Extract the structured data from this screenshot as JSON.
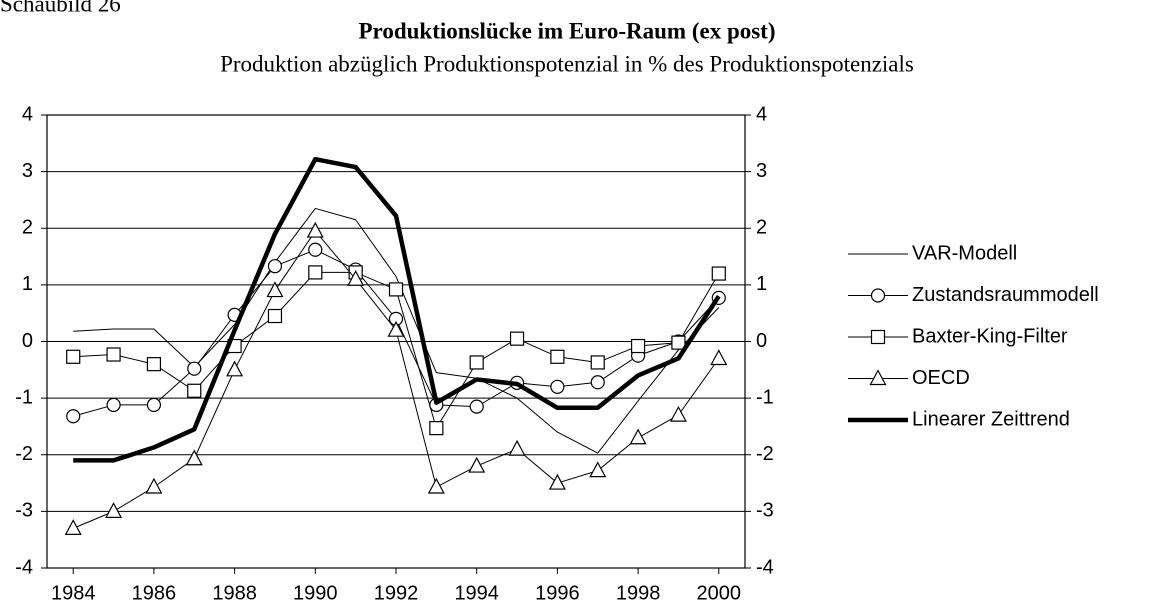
{
  "chart_data": {
    "type": "line",
    "figure_label": "Schaubild 26",
    "title": "Produktionslücke im Euro-Raum (ex post)",
    "subtitle": "Produktion abzüglich Produktionspotenzial in % des Produktionspotenzials",
    "x": [
      1984,
      1985,
      1986,
      1987,
      1988,
      1989,
      1990,
      1991,
      1992,
      1993,
      1994,
      1995,
      1996,
      1997,
      1998,
      1999,
      2000
    ],
    "xlim": [
      1983.35,
      2000.65
    ],
    "xticks": [
      1984,
      1986,
      1988,
      1990,
      1992,
      1994,
      1996,
      1998,
      2000
    ],
    "ylim": [
      -4,
      4
    ],
    "yticks": [
      -4,
      -3,
      -2,
      -1,
      0,
      1,
      2,
      3,
      4
    ],
    "y2lim": [
      -4,
      4
    ],
    "y2ticks": [
      -4,
      -3,
      -2,
      -1,
      0,
      1,
      2,
      3,
      4
    ],
    "grid": true,
    "legend": "right",
    "series": [
      {
        "name": "VAR-Modell",
        "color": "#000000",
        "width": 1,
        "marker": "none",
        "values": [
          0.18,
          0.22,
          0.22,
          -0.45,
          0.3,
          1.4,
          2.35,
          2.15,
          1.15,
          -0.55,
          -0.65,
          -1.0,
          -1.6,
          -1.97,
          -1.05,
          -0.15,
          0.6
        ]
      },
      {
        "name": "Zustandsraummodell",
        "color": "#000000",
        "width": 1,
        "marker": "circle",
        "values": [
          -1.32,
          -1.12,
          -1.12,
          -0.48,
          0.47,
          1.33,
          1.62,
          1.27,
          0.4,
          -1.12,
          -1.15,
          -0.73,
          -0.8,
          -0.72,
          -0.25,
          0.0,
          0.77
        ]
      },
      {
        "name": "Baxter-King-Filter",
        "color": "#000000",
        "width": 1,
        "marker": "square",
        "values": [
          -0.27,
          -0.23,
          -0.4,
          -0.87,
          -0.08,
          0.45,
          1.22,
          1.22,
          0.92,
          -1.53,
          -0.37,
          0.05,
          -0.27,
          -0.37,
          -0.08,
          -0.02,
          1.2
        ]
      },
      {
        "name": "OECD",
        "color": "#000000",
        "width": 1,
        "marker": "triangle",
        "values": [
          -3.3,
          -3.0,
          -2.57,
          -2.07,
          -0.5,
          0.9,
          1.95,
          1.1,
          0.2,
          -2.57,
          -2.2,
          -1.9,
          -2.5,
          -2.28,
          -1.7,
          -1.3,
          -0.3
        ]
      },
      {
        "name": "Linearer Zeittrend",
        "color": "#000000",
        "width": 4.5,
        "marker": "none",
        "values": [
          -2.1,
          -2.1,
          -1.87,
          -1.55,
          0.2,
          1.9,
          3.22,
          3.08,
          2.22,
          -1.08,
          -0.67,
          -0.75,
          -1.17,
          -1.17,
          -0.6,
          -0.3,
          0.8
        ]
      }
    ]
  }
}
